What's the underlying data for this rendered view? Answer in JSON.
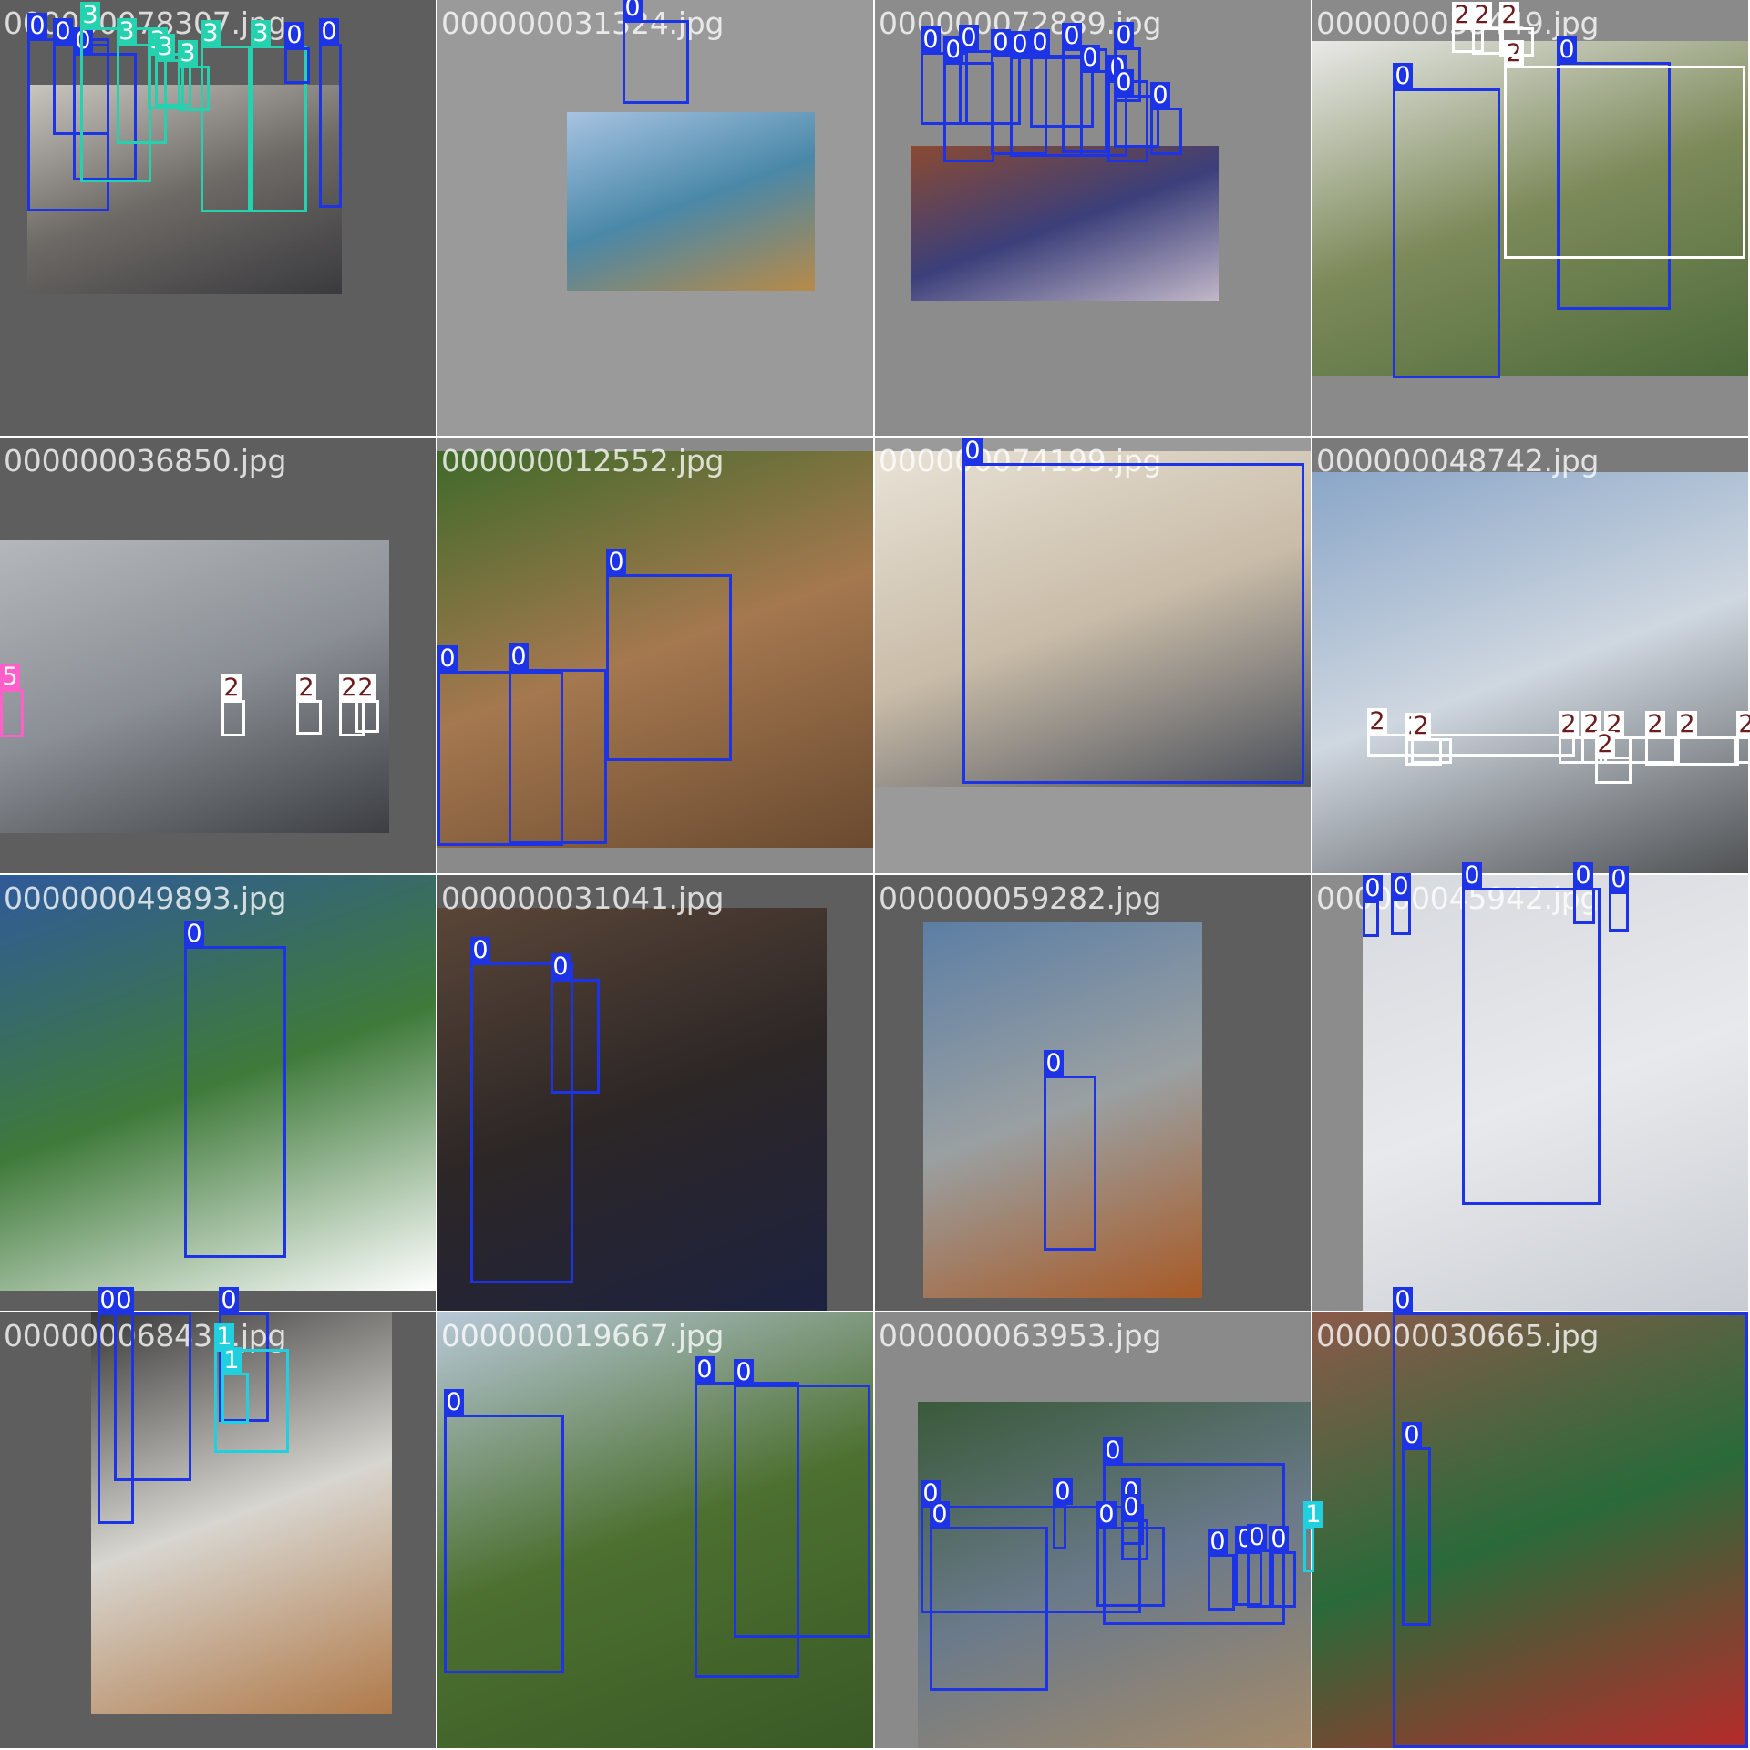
{
  "grid": {
    "title": "",
    "tiles": [
      {
        "filename": "000000078307.jpg",
        "background": "#5e5e5e",
        "photo_colors": [
          "#c9c6c0",
          "#6e6a66",
          "#3a3a3e"
        ],
        "boxes": [
          {
            "label": "0"
          },
          {
            "label": "0"
          },
          {
            "label": "0"
          },
          {
            "label": "3"
          },
          {
            "label": "3"
          },
          {
            "label": "3"
          },
          {
            "label": "3"
          },
          {
            "label": "3"
          },
          {
            "label": "3"
          },
          {
            "label": "3"
          },
          {
            "label": "0"
          },
          {
            "label": "0"
          }
        ]
      },
      {
        "filename": "000000031324.jpg",
        "background": "#9a9a9a",
        "photo_colors": [
          "#a7c3e2",
          "#4a88a8",
          "#b78a48"
        ],
        "boxes": [
          {
            "label": "0"
          }
        ]
      },
      {
        "filename": "000000072889.jpg",
        "background": "#8c8c8c",
        "photo_colors": [
          "#8a4a32",
          "#3b3f7a",
          "#c2b7c8"
        ],
        "boxes": [
          {
            "label": "0"
          },
          {
            "label": "0"
          },
          {
            "label": "0"
          },
          {
            "label": "0"
          },
          {
            "label": "0"
          },
          {
            "label": "0"
          },
          {
            "label": "0"
          },
          {
            "label": "0"
          },
          {
            "label": "0"
          },
          {
            "label": "0"
          },
          {
            "label": "0"
          },
          {
            "label": "0"
          }
        ]
      },
      {
        "filename": "000000038449.jpg",
        "background": "#8a8a8a",
        "photo_colors": [
          "#e9e9e8",
          "#7d8a5a",
          "#4d6a3a"
        ],
        "boxes": [
          {
            "label": "0"
          },
          {
            "label": "0"
          },
          {
            "label": "2"
          },
          {
            "label": "2"
          },
          {
            "label": "2"
          },
          {
            "label": "2"
          }
        ]
      },
      {
        "filename": "000000036850.jpg",
        "background": "#5e5e5e",
        "photo_colors": [
          "#b4b8bc",
          "#8a8f95",
          "#3c3e42"
        ],
        "boxes": [
          {
            "label": "5"
          },
          {
            "label": "2"
          },
          {
            "label": "2"
          },
          {
            "label": "2"
          },
          {
            "label": "2"
          }
        ]
      },
      {
        "filename": "000000012552.jpg",
        "background": "#8a8a8a",
        "photo_colors": [
          "#3f6a2a",
          "#a5784f",
          "#6a4a30"
        ],
        "boxes": [
          {
            "label": "0"
          },
          {
            "label": "0"
          },
          {
            "label": "0"
          }
        ]
      },
      {
        "filename": "000000074199.jpg",
        "background": "#9a9a9a",
        "photo_colors": [
          "#e8e2d6",
          "#c9bca8",
          "#4a4f5a"
        ],
        "boxes": [
          {
            "label": "0"
          }
        ]
      },
      {
        "filename": "000000048742.jpg",
        "background": "#7a7a7a",
        "photo_colors": [
          "#8aa6c8",
          "#cfd7e0",
          "#505254"
        ],
        "boxes": [
          {
            "label": "2"
          },
          {
            "label": "2"
          },
          {
            "label": "2"
          },
          {
            "label": "2"
          },
          {
            "label": "2"
          },
          {
            "label": "2"
          },
          {
            "label": "2"
          },
          {
            "label": "2"
          },
          {
            "label": "2"
          },
          {
            "label": "2"
          }
        ]
      },
      {
        "filename": "000000049893.jpg",
        "background": "#5e5e5e",
        "photo_colors": [
          "#2f5a9a",
          "#3f7a3a",
          "#ffffff"
        ],
        "boxes": [
          {
            "label": "0"
          }
        ]
      },
      {
        "filename": "000000031041.jpg",
        "background": "#5e5e5e",
        "photo_colors": [
          "#5a4638",
          "#2c2626",
          "#1d2240"
        ],
        "boxes": [
          {
            "label": "0"
          },
          {
            "label": "0"
          }
        ]
      },
      {
        "filename": "000000059282.jpg",
        "background": "#5e5e5e",
        "photo_colors": [
          "#5c7ea4",
          "#9aa0a2",
          "#a85a26"
        ],
        "boxes": [
          {
            "label": "0"
          }
        ]
      },
      {
        "filename": "000000045942.jpg",
        "background": "#8c8c8c",
        "photo_colors": [
          "#d6d9de",
          "#e8e9ec",
          "#c8ccd2"
        ],
        "boxes": [
          {
            "label": "0"
          },
          {
            "label": "0"
          },
          {
            "label": "0"
          },
          {
            "label": "0"
          },
          {
            "label": "0"
          }
        ]
      },
      {
        "filename": "000000068437.jpg",
        "background": "#5e5e5e",
        "photo_colors": [
          "#3a3a3a",
          "#d8d6d0",
          "#b07a4a"
        ],
        "boxes": [
          {
            "label": "0"
          },
          {
            "label": "0"
          },
          {
            "label": "0"
          },
          {
            "label": "1"
          },
          {
            "label": "1"
          }
        ]
      },
      {
        "filename": "000000019667.jpg",
        "background": "#8a8a8a",
        "photo_colors": [
          "#b8c8d8",
          "#4c7030",
          "#3a5a26"
        ],
        "boxes": [
          {
            "label": "0"
          },
          {
            "label": "0"
          },
          {
            "label": "0"
          }
        ]
      },
      {
        "filename": "000000063953.jpg",
        "background": "#8a8a8a",
        "photo_colors": [
          "#3a5a3a",
          "#6a7a8a",
          "#a48a6a"
        ],
        "boxes": [
          {
            "label": "0"
          },
          {
            "label": "0"
          },
          {
            "label": "0"
          },
          {
            "label": "0"
          },
          {
            "label": "0"
          },
          {
            "label": "0"
          },
          {
            "label": "0"
          },
          {
            "label": "0"
          },
          {
            "label": "0"
          },
          {
            "label": "0"
          },
          {
            "label": "0"
          },
          {
            "label": "1"
          }
        ]
      },
      {
        "filename": "000000030665.jpg",
        "background": "#5e5e5e",
        "photo_colors": [
          "#8a5a4a",
          "#2a6a3a",
          "#b82a2a"
        ],
        "boxes": [
          {
            "label": "0"
          },
          {
            "label": "0"
          }
        ]
      }
    ]
  },
  "class_colors": {
    "0": "#1c34e6",
    "1": "#20d0de",
    "2": "#ffffff",
    "3": "#25d2b0",
    "5": "#ff5fc8"
  }
}
